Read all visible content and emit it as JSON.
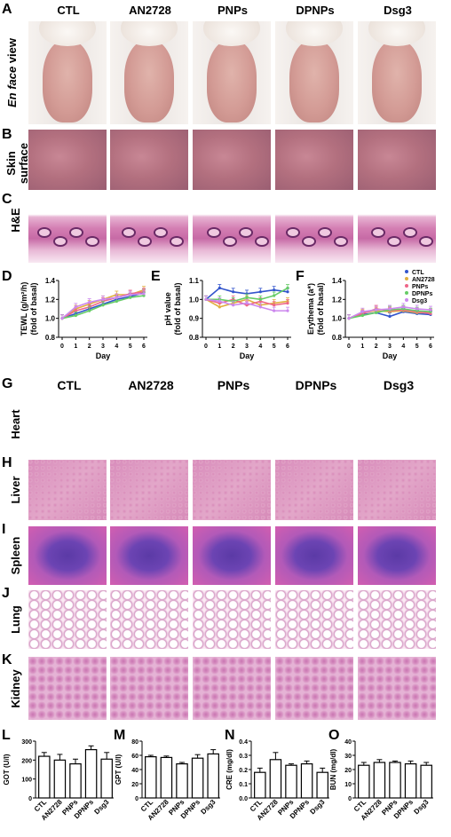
{
  "groups": [
    "CTL",
    "AN2728",
    "PNPs",
    "DPNPs",
    "Dsg3"
  ],
  "letters": {
    "A": "A",
    "B": "B",
    "C": "C",
    "D": "D",
    "E": "E",
    "F": "F",
    "G": "G",
    "H": "H",
    "I": "I",
    "J": "J",
    "K": "K",
    "L": "L",
    "M": "M",
    "N": "N",
    "O": "O"
  },
  "row_labels_top": {
    "en_face_italic": "En face",
    "en_face_rest": " view",
    "skin_1": "Skin",
    "skin_2": "surface",
    "he": "H&E"
  },
  "row_labels_hist": [
    "Heart",
    "Liver",
    "Spleen",
    "Lung",
    "Kidney"
  ],
  "chart_data": [
    {
      "type": "line",
      "panel": "D",
      "ylabel_1": "TEWL (g/m²/h)",
      "ylabel_2": "(fold of basal)",
      "xlabel": "Day",
      "x": [
        0,
        1,
        2,
        3,
        4,
        5,
        6
      ],
      "ylim": [
        0.8,
        1.4
      ],
      "yticks": [
        "0.8",
        "1.0",
        "1.2",
        "1.4"
      ],
      "xticks": [
        "0",
        "1",
        "2",
        "3",
        "4",
        "5",
        "6"
      ],
      "series": [
        {
          "name": "CTL",
          "color": "#3355cc",
          "values": [
            1.0,
            1.05,
            1.1,
            1.15,
            1.2,
            1.23,
            1.27
          ]
        },
        {
          "name": "AN2728",
          "color": "#e0b040",
          "values": [
            1.0,
            1.1,
            1.15,
            1.2,
            1.25,
            1.25,
            1.3
          ]
        },
        {
          "name": "PNPs",
          "color": "#ee6688",
          "values": [
            1.0,
            1.08,
            1.12,
            1.18,
            1.22,
            1.26,
            1.28
          ]
        },
        {
          "name": "DPNPs",
          "color": "#66cc66",
          "values": [
            1.0,
            1.03,
            1.08,
            1.14,
            1.18,
            1.22,
            1.24
          ]
        },
        {
          "name": "Dsg3",
          "color": "#cc88ee",
          "values": [
            1.0,
            1.12,
            1.17,
            1.2,
            1.22,
            1.25,
            1.26
          ]
        }
      ]
    },
    {
      "type": "line",
      "panel": "E",
      "ylabel_1": "pH value",
      "ylabel_2": "(fold of basal)",
      "xlabel": "Day",
      "x": [
        0,
        1,
        2,
        3,
        4,
        5,
        6
      ],
      "ylim": [
        0.8,
        1.1
      ],
      "yticks": [
        "0.8",
        "0.9",
        "1.0",
        "1.1"
      ],
      "xticks": [
        "0",
        "1",
        "2",
        "3",
        "4",
        "5",
        "6"
      ],
      "series": [
        {
          "name": "CTL",
          "color": "#3355cc",
          "values": [
            1.0,
            1.06,
            1.04,
            1.03,
            1.04,
            1.05,
            1.04
          ]
        },
        {
          "name": "AN2728",
          "color": "#e0b040",
          "values": [
            1.0,
            0.96,
            0.98,
            1.0,
            0.97,
            0.98,
            0.99
          ]
        },
        {
          "name": "PNPs",
          "color": "#ee6688",
          "values": [
            1.0,
            0.98,
            1.0,
            0.97,
            0.99,
            0.97,
            0.98
          ]
        },
        {
          "name": "DPNPs",
          "color": "#66cc66",
          "values": [
            1.0,
            1.0,
            0.99,
            1.01,
            1.0,
            1.02,
            1.06
          ]
        },
        {
          "name": "Dsg3",
          "color": "#cc88ee",
          "values": [
            1.0,
            0.99,
            0.97,
            0.98,
            0.96,
            0.94,
            0.94
          ]
        }
      ]
    },
    {
      "type": "line",
      "panel": "F",
      "ylabel_1": "Erythema (a*)",
      "ylabel_2": "(fold of basal)",
      "xlabel": "Day",
      "x": [
        0,
        1,
        2,
        3,
        4,
        5,
        6
      ],
      "ylim": [
        0.8,
        1.4
      ],
      "yticks": [
        "0.8",
        "1.0",
        "1.2",
        "1.4"
      ],
      "xticks": [
        "0",
        "1",
        "2",
        "3",
        "4",
        "5",
        "6"
      ],
      "series": [
        {
          "name": "CTL",
          "color": "#3355cc",
          "values": [
            1.0,
            1.04,
            1.06,
            1.02,
            1.07,
            1.05,
            1.04
          ]
        },
        {
          "name": "AN2728",
          "color": "#e0b040",
          "values": [
            1.0,
            1.06,
            1.08,
            1.07,
            1.08,
            1.06,
            1.06
          ]
        },
        {
          "name": "PNPs",
          "color": "#ee6688",
          "values": [
            1.0,
            1.05,
            1.1,
            1.08,
            1.09,
            1.07,
            1.05
          ]
        },
        {
          "name": "DPNPs",
          "color": "#66cc66",
          "values": [
            1.0,
            1.03,
            1.06,
            1.09,
            1.1,
            1.08,
            1.07
          ]
        },
        {
          "name": "Dsg3",
          "color": "#cc88ee",
          "values": [
            1.0,
            1.07,
            1.09,
            1.1,
            1.12,
            1.1,
            1.09
          ]
        }
      ]
    },
    {
      "type": "bar",
      "panel": "L",
      "ylabel": "GOT (U/l)",
      "categories": [
        "CTL",
        "AN2728",
        "PNPs",
        "DPNPs",
        "Dsg3"
      ],
      "values": [
        220,
        200,
        180,
        255,
        205
      ],
      "errors": [
        20,
        30,
        25,
        20,
        35
      ],
      "ylim": [
        0,
        300
      ],
      "yticks": [
        "0",
        "100",
        "200",
        "300"
      ]
    },
    {
      "type": "bar",
      "panel": "M",
      "ylabel": "GPT (U/l)",
      "categories": [
        "CTL",
        "AN2728",
        "PNPs",
        "DPNPs",
        "Dsg3"
      ],
      "values": [
        58,
        57,
        48,
        56,
        62
      ],
      "errors": [
        2,
        2,
        2,
        5,
        6
      ],
      "ylim": [
        0,
        80
      ],
      "yticks": [
        "0",
        "20",
        "40",
        "60",
        "80"
      ]
    },
    {
      "type": "bar",
      "panel": "N",
      "ylabel": "CRE (mg/dl)",
      "categories": [
        "CTL",
        "AN2728",
        "PNPs",
        "DPNPs",
        "Dsg3"
      ],
      "values": [
        0.18,
        0.27,
        0.23,
        0.24,
        0.18
      ],
      "errors": [
        0.03,
        0.05,
        0.01,
        0.02,
        0.03
      ],
      "ylim": [
        0,
        0.4
      ],
      "yticks": [
        "0.0",
        "0.1",
        "0.2",
        "0.3",
        "0.4"
      ]
    },
    {
      "type": "bar",
      "panel": "O",
      "ylabel": "BUN (mg/dl)",
      "categories": [
        "CTL",
        "AN2728",
        "PNPs",
        "DPNPs",
        "Dsg3"
      ],
      "values": [
        23,
        25,
        25,
        24,
        23
      ],
      "errors": [
        2,
        2,
        1,
        2,
        2
      ],
      "ylim": [
        0,
        40
      ],
      "yticks": [
        "0",
        "10",
        "20",
        "30",
        "40"
      ]
    }
  ]
}
